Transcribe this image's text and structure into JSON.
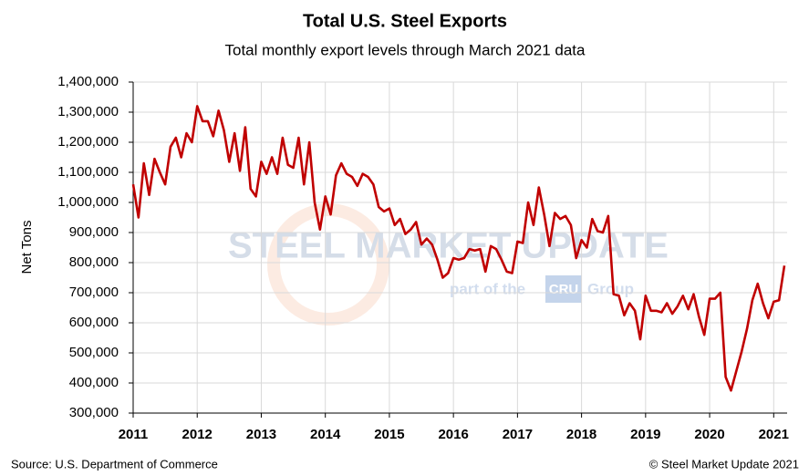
{
  "chart_data": {
    "type": "line",
    "title": "Total U.S. Steel Exports",
    "subtitle": "Total monthly export levels through March 2021 data",
    "y_label": "Net Tons",
    "source": "Source: U.S. Department of Commerce",
    "copyright": "© Steel Market Update 2021",
    "watermark": {
      "brand": "STEEL MARKET UPDATE",
      "tagline": "part of the",
      "logo": "CRU",
      "group": "Group"
    },
    "categories": [
      "2011",
      null,
      null,
      null,
      null,
      null,
      null,
      null,
      null,
      null,
      null,
      null,
      "2012",
      null,
      null,
      null,
      null,
      null,
      null,
      null,
      null,
      null,
      null,
      null,
      "2013",
      null,
      null,
      null,
      null,
      null,
      null,
      null,
      null,
      null,
      null,
      null,
      "2014",
      null,
      null,
      null,
      null,
      null,
      null,
      null,
      null,
      null,
      null,
      null,
      "2015",
      null,
      null,
      null,
      null,
      null,
      null,
      null,
      null,
      null,
      null,
      null,
      "2016",
      null,
      null,
      null,
      null,
      null,
      null,
      null,
      null,
      null,
      null,
      null,
      "2017",
      null,
      null,
      null,
      null,
      null,
      null,
      null,
      null,
      null,
      null,
      null,
      "2018",
      null,
      null,
      null,
      null,
      null,
      null,
      null,
      null,
      null,
      null,
      null,
      "2019",
      null,
      null,
      null,
      null,
      null,
      null,
      null,
      null,
      null,
      null,
      null,
      "2020",
      null,
      null,
      null,
      null,
      null,
      null,
      null,
      null,
      null,
      null,
      null,
      "2021",
      null,
      null
    ],
    "series": [
      {
        "name": "Total U.S. Steel Exports",
        "color": "#c00000",
        "values": [
          1060000,
          950000,
          1130000,
          1025000,
          1145000,
          1100000,
          1060000,
          1185000,
          1215000,
          1150000,
          1230000,
          1200000,
          1320000,
          1270000,
          1270000,
          1220000,
          1305000,
          1240000,
          1135000,
          1230000,
          1105000,
          1250000,
          1045000,
          1020000,
          1135000,
          1095000,
          1150000,
          1095000,
          1215000,
          1125000,
          1115000,
          1215000,
          1060000,
          1200000,
          1000000,
          910000,
          1020000,
          960000,
          1090000,
          1130000,
          1095000,
          1085000,
          1055000,
          1095000,
          1085000,
          1060000,
          985000,
          970000,
          980000,
          925000,
          945000,
          895000,
          910000,
          935000,
          860000,
          880000,
          860000,
          810000,
          750000,
          765000,
          815000,
          810000,
          815000,
          845000,
          840000,
          845000,
          770000,
          855000,
          845000,
          810000,
          770000,
          765000,
          870000,
          865000,
          1000000,
          925000,
          1050000,
          960000,
          855000,
          965000,
          945000,
          955000,
          925000,
          815000,
          875000,
          850000,
          945000,
          905000,
          900000,
          955000,
          695000,
          690000,
          625000,
          665000,
          640000,
          545000,
          690000,
          640000,
          640000,
          635000,
          665000,
          630000,
          655000,
          690000,
          645000,
          695000,
          620000,
          560000,
          680000,
          680000,
          700000,
          420000,
          375000,
          440000,
          505000,
          580000,
          675000,
          730000,
          665000,
          615000,
          670000,
          675000,
          790000
        ]
      }
    ],
    "ylim": [
      300000,
      1400000
    ],
    "yticks": [
      {
        "value": 300000,
        "label": "300,000"
      },
      {
        "value": 400000,
        "label": "400,000"
      },
      {
        "value": 500000,
        "label": "500,000"
      },
      {
        "value": 600000,
        "label": "600,000"
      },
      {
        "value": 700000,
        "label": "700,000"
      },
      {
        "value": 800000,
        "label": "800,000"
      },
      {
        "value": 900000,
        "label": "900,000"
      },
      {
        "value": 1000000,
        "label": "1,000,000"
      },
      {
        "value": 1100000,
        "label": "1,100,000"
      },
      {
        "value": 1200000,
        "label": "1,200,000"
      },
      {
        "value": 1300000,
        "label": "1,300,000"
      },
      {
        "value": 1400000,
        "label": "1,400,000"
      }
    ],
    "grid": true
  }
}
